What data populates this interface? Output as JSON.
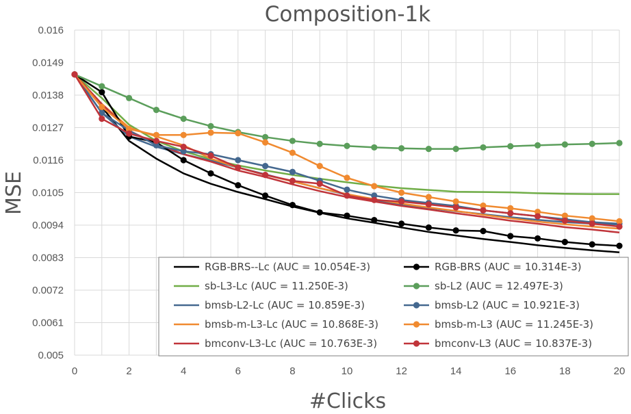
{
  "chart_data": {
    "type": "line",
    "title": "Composition-1k",
    "xlabel": "#Clicks",
    "ylabel": "MSE",
    "xlim": [
      0,
      20
    ],
    "ylim": [
      0.005,
      0.016
    ],
    "x_ticks": [
      "0",
      "2",
      "4",
      "6",
      "8",
      "10",
      "12",
      "14",
      "16",
      "18",
      "20"
    ],
    "y_ticks": [
      "0.005",
      "0.0061",
      "0.0072",
      "0.0083",
      "0.0094",
      "0.0105",
      "0.0116",
      "0.0127",
      "0.0138",
      "0.0149",
      "0.016"
    ],
    "grid": true,
    "legend_position": "bottom-right",
    "x": [
      0,
      1,
      2,
      3,
      4,
      5,
      6,
      7,
      8,
      9,
      10,
      11,
      12,
      13,
      14,
      15,
      16,
      17,
      18,
      19,
      20
    ],
    "series": [
      {
        "name": "RGB-BRS--Lc (AUC = 10.054E-3)",
        "color": "#000000",
        "markers": false,
        "values": [
          0.0145,
          0.0134,
          0.01225,
          0.01165,
          0.01115,
          0.0108,
          0.01052,
          0.01028,
          0.01003,
          0.00982,
          0.00963,
          0.00948,
          0.00932,
          0.00917,
          0.00905,
          0.00893,
          0.00883,
          0.00872,
          0.00863,
          0.00855,
          0.00848
        ]
      },
      {
        "name": "RGB-BRS (AUC = 10.314E-3)",
        "color": "#000000",
        "markers": true,
        "values": [
          0.0145,
          0.0139,
          0.0124,
          0.0122,
          0.0116,
          0.01115,
          0.01075,
          0.0104,
          0.01008,
          0.00983,
          0.00972,
          0.00957,
          0.00945,
          0.00932,
          0.00922,
          0.0092,
          0.00903,
          0.00895,
          0.00883,
          0.00875,
          0.0087
        ]
      },
      {
        "name": "sb-L3-Lc (AUC = 11.250E-3)",
        "color": "#70AD47",
        "markers": false,
        "values": [
          0.0145,
          0.0137,
          0.0128,
          0.01225,
          0.0119,
          0.01163,
          0.01142,
          0.01125,
          0.0111,
          0.01097,
          0.01085,
          0.01074,
          0.01065,
          0.01059,
          0.01053,
          0.01052,
          0.01051,
          0.01048,
          0.01046,
          0.01045,
          0.01045
        ]
      },
      {
        "name": "sb-L2 (AUC = 12.497E-3)",
        "color": "#5B9E5B",
        "markers": true,
        "values": [
          0.0145,
          0.0141,
          0.0137,
          0.0133,
          0.013,
          0.01275,
          0.01255,
          0.01238,
          0.01225,
          0.01215,
          0.01208,
          0.01203,
          0.012,
          0.01198,
          0.01198,
          0.01203,
          0.01207,
          0.0121,
          0.01213,
          0.01215,
          0.01218
        ]
      },
      {
        "name": "bmsb-L2-Lc (AUC = 10.859E-3)",
        "color": "#44688F",
        "markers": false,
        "values": [
          0.0145,
          0.0132,
          0.0124,
          0.01205,
          0.0118,
          0.01158,
          0.01135,
          0.01112,
          0.01088,
          0.01065,
          0.01043,
          0.01025,
          0.0101,
          0.00998,
          0.00987,
          0.00977,
          0.00967,
          0.00958,
          0.0095,
          0.00945,
          0.00942
        ]
      },
      {
        "name": "bmsb-L2 (AUC = 10.921E-3)",
        "color": "#44688F",
        "markers": true,
        "values": [
          0.0145,
          0.0132,
          0.0126,
          0.0121,
          0.0119,
          0.0118,
          0.0116,
          0.0114,
          0.0112,
          0.0109,
          0.0106,
          0.0104,
          0.01025,
          0.01015,
          0.01005,
          0.0099,
          0.0098,
          0.0097,
          0.0096,
          0.0095,
          0.00945
        ]
      },
      {
        "name": "bmsb-m-L3-Lc (AUC = 10.868E-3)",
        "color": "#F08A30",
        "markers": false,
        "values": [
          0.0145,
          0.0135,
          0.0127,
          0.0124,
          0.0121,
          0.01165,
          0.01135,
          0.0111,
          0.01088,
          0.01065,
          0.01045,
          0.01028,
          0.01013,
          0.01,
          0.00988,
          0.00975,
          0.00963,
          0.00952,
          0.00943,
          0.00935,
          0.00928
        ]
      },
      {
        "name": "bmsb-m-L3 (AUC = 11.245E-3)",
        "color": "#F08A30",
        "markers": true,
        "values": [
          0.0145,
          0.0134,
          0.01265,
          0.01245,
          0.01245,
          0.01253,
          0.01251,
          0.0122,
          0.01185,
          0.0114,
          0.011,
          0.01072,
          0.0105,
          0.01035,
          0.0102,
          0.01006,
          0.00997,
          0.00985,
          0.00972,
          0.00963,
          0.00953
        ]
      },
      {
        "name": "bmconv-L3-Lc (AUC = 10.763E-3)",
        "color": "#C0343A",
        "markers": false,
        "values": [
          0.0145,
          0.0135,
          0.0126,
          0.01215,
          0.0118,
          0.01155,
          0.01125,
          0.01103,
          0.01078,
          0.01055,
          0.01035,
          0.0102,
          0.01005,
          0.00993,
          0.0098,
          0.00968,
          0.00955,
          0.00945,
          0.00933,
          0.00925,
          0.00915
        ]
      },
      {
        "name": "bmconv-L3 (AUC = 10.837E-3)",
        "color": "#C0343A",
        "markers": true,
        "values": [
          0.0145,
          0.013,
          0.0125,
          0.01225,
          0.01205,
          0.01175,
          0.01135,
          0.0111,
          0.0109,
          0.0108,
          0.0104,
          0.01025,
          0.0102,
          0.0101,
          0.01,
          0.0099,
          0.0098,
          0.0097,
          0.00955,
          0.00945,
          0.00935
        ]
      }
    ]
  }
}
